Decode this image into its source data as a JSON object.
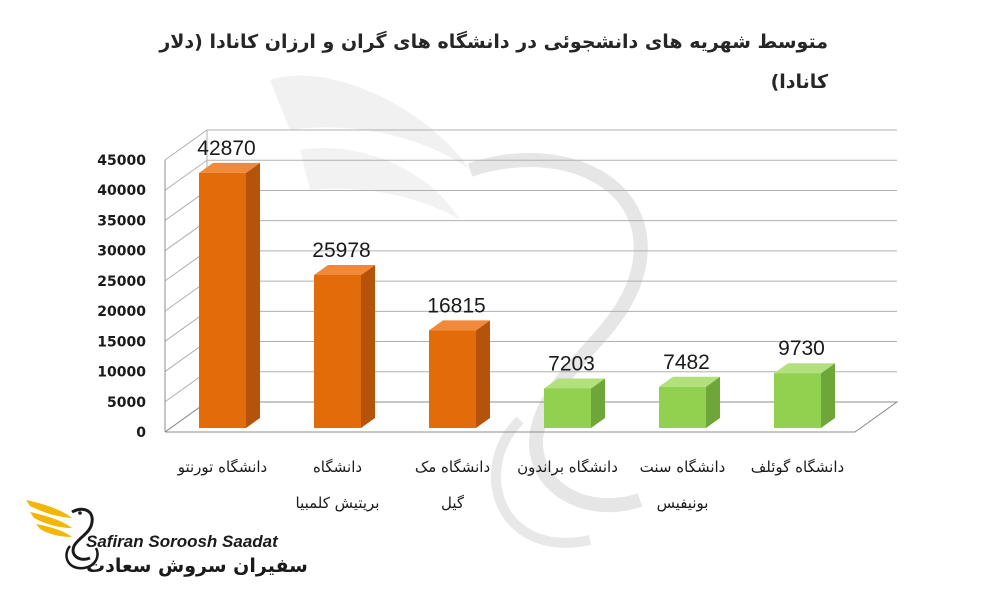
{
  "chart_data": {
    "type": "bar",
    "title_lines": [
      "متوسط شهریه های دانشجوئی در دانشگاه های گران و ارزان کانادا (دلار",
      "کانادا)"
    ],
    "categories": [
      [
        "دانشگاه تورنتو"
      ],
      [
        "دانشگاه",
        "بریتیش کلمبیا"
      ],
      [
        "دانشگاه مک",
        "گیل"
      ],
      [
        "دانشگاه براندون"
      ],
      [
        "دانشگاه سنت",
        "بونیفیس"
      ],
      [
        "دانشگاه گوئلف"
      ]
    ],
    "values": [
      42870,
      25978,
      16815,
      7203,
      7482,
      9730
    ],
    "value_labels": [
      "42870",
      "25978",
      "16815",
      "7203",
      "7482",
      "9730"
    ],
    "y_ticks": [
      0,
      5000,
      10000,
      15000,
      20000,
      25000,
      30000,
      35000,
      40000,
      45000
    ],
    "y_tick_labels": [
      "0",
      "5000",
      "10000",
      "15000",
      "20000",
      "25000",
      "30000",
      "35000",
      "40000",
      "45000"
    ],
    "ylim": [
      0,
      45000
    ],
    "grid": true,
    "bar_style": "3d",
    "bar_groups": [
      "expensive",
      "expensive",
      "expensive",
      "cheap",
      "cheap",
      "cheap"
    ],
    "colors": {
      "expensive_front": "#e36c0a",
      "expensive_side": "#b5530a",
      "expensive_top": "#f08a3a",
      "cheap_front": "#92d050",
      "cheap_side": "#6fa63a",
      "cheap_top": "#b1e07c",
      "grid": "#b0b0b0",
      "axis": "#8c8c8c"
    }
  },
  "logo": {
    "name_en": "Safiran Soroosh Saadat",
    "name_fa": "سفیران سروش سعادت",
    "colors": {
      "wing": "#f2b705",
      "text": "#1a1a1a"
    }
  }
}
